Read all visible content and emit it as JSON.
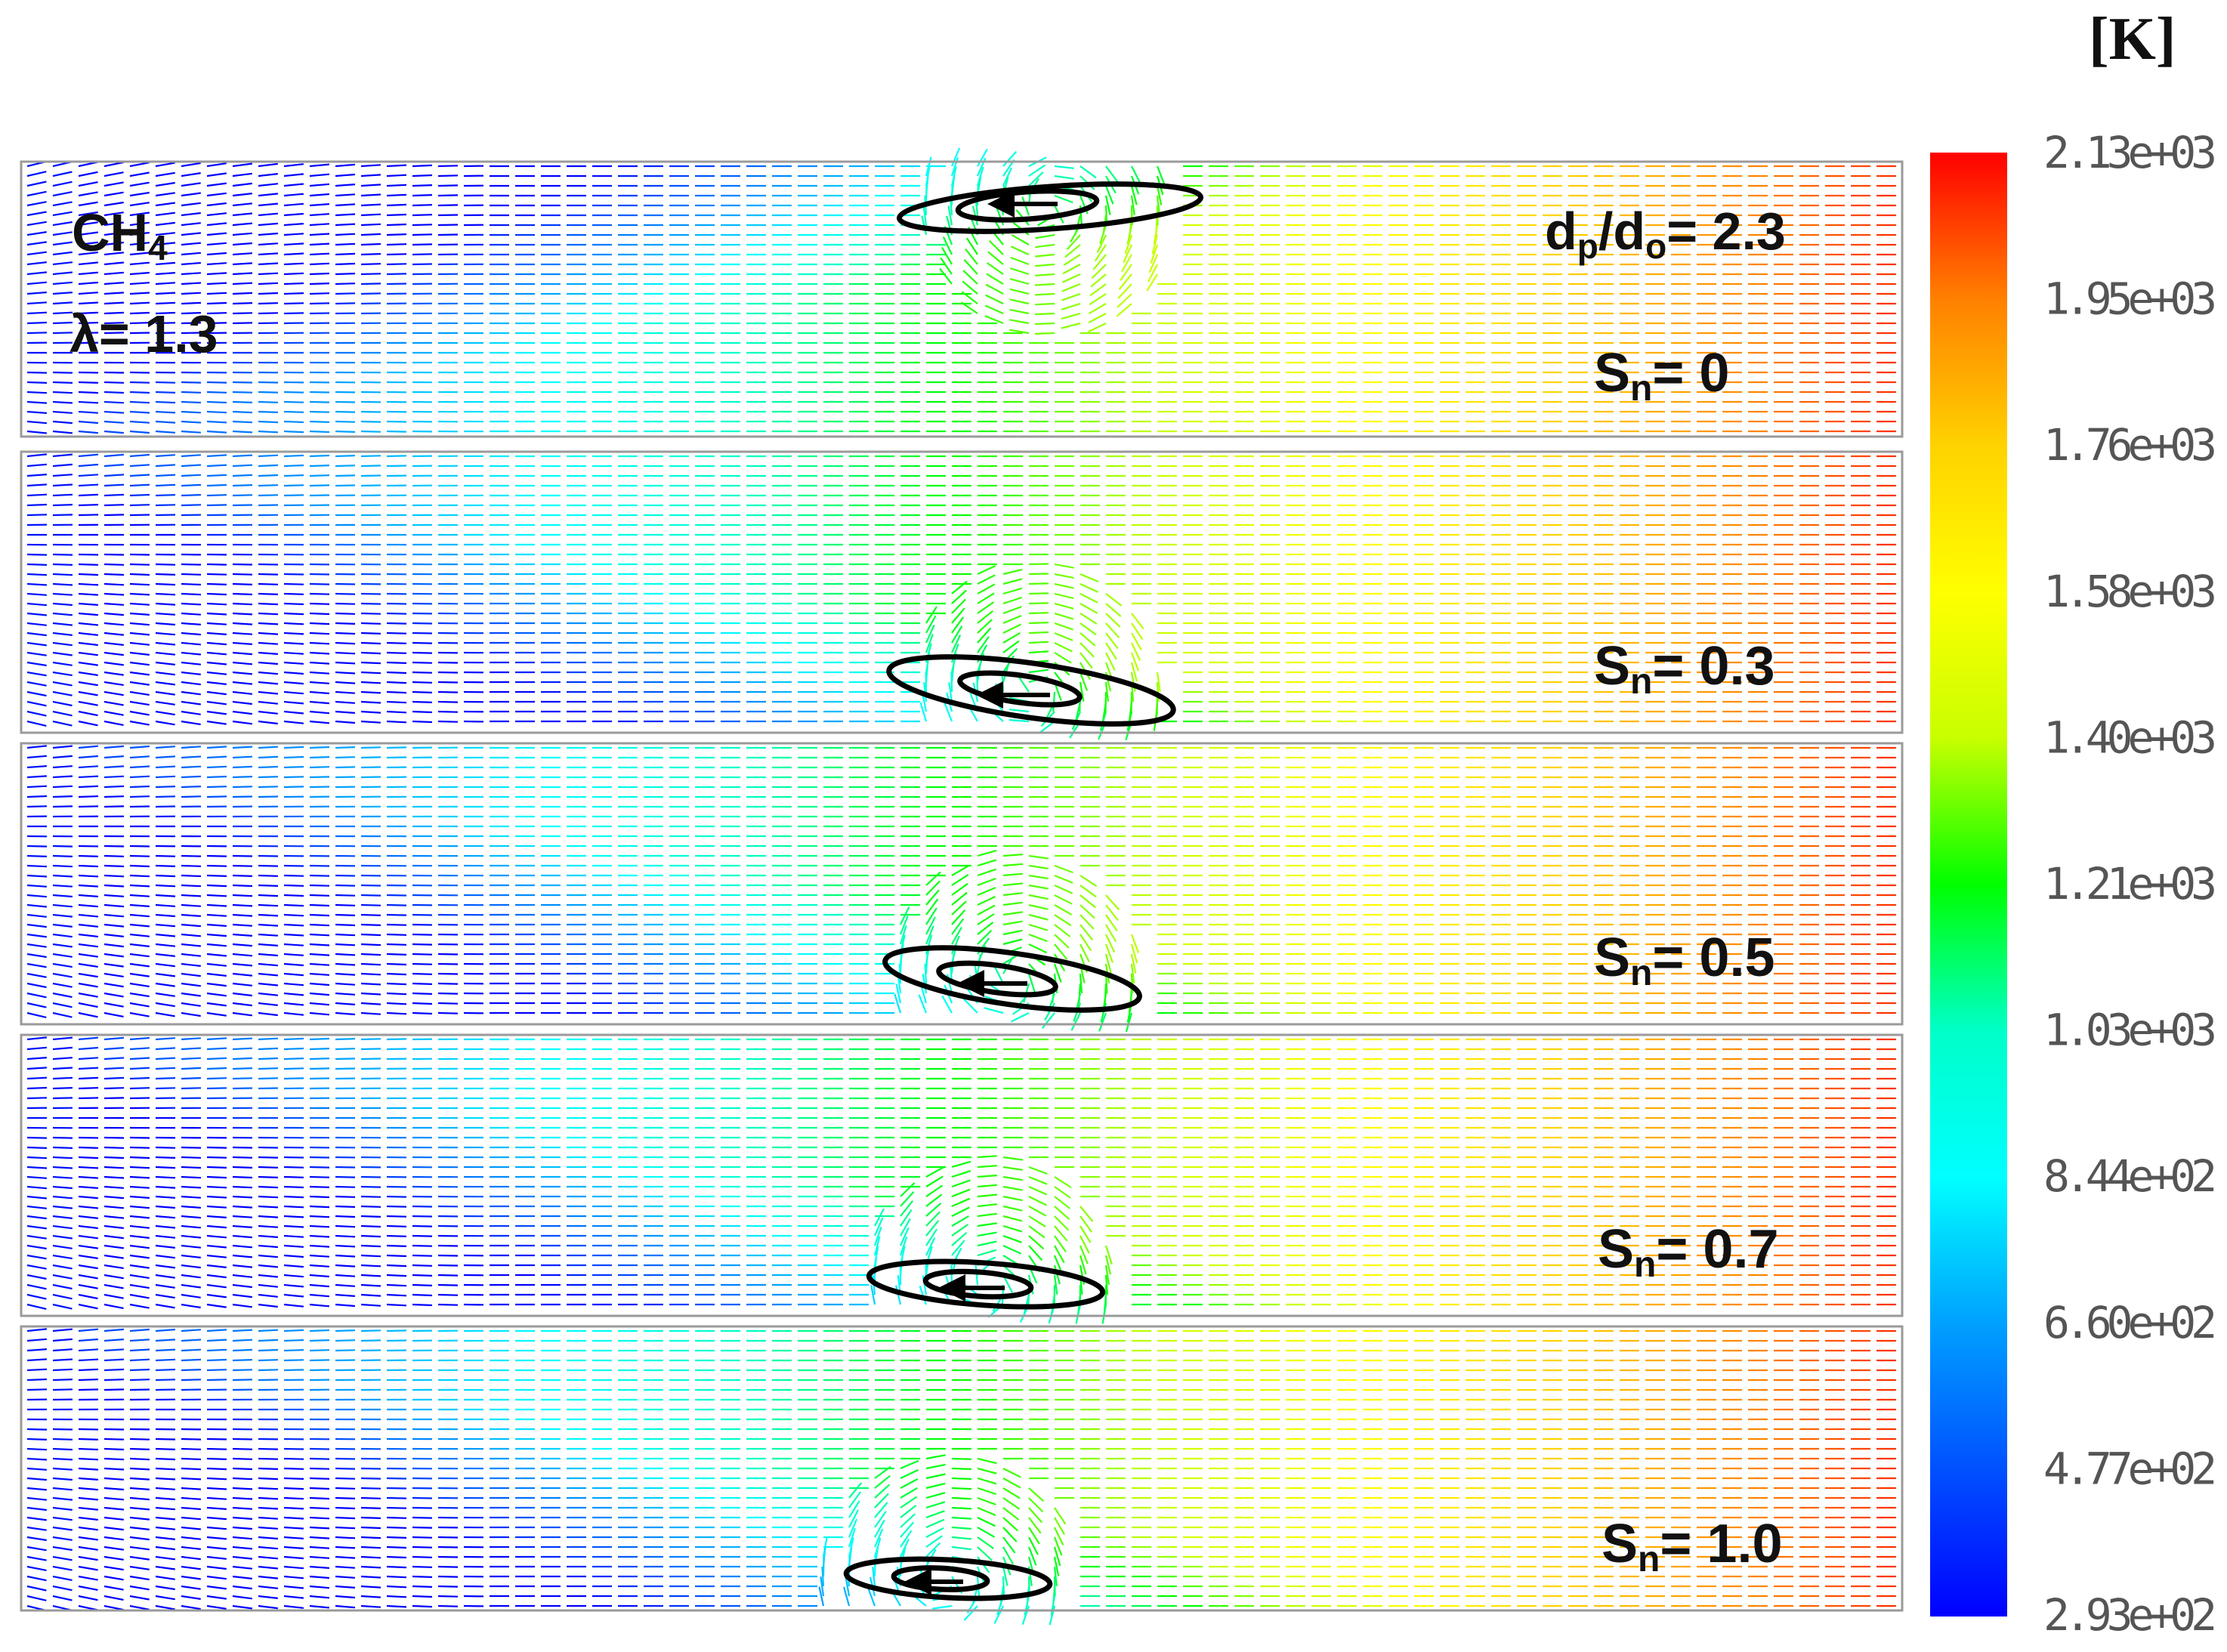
{
  "figure": {
    "fuel_label": "CH",
    "fuel_subscript": "4",
    "lambda_label": "λ= 1.3",
    "ratio_label": {
      "d1": "d",
      "sub1": "p",
      "slash": "/d",
      "sub2": "o",
      "value": "= 2.3"
    },
    "panels": [
      {
        "sn_prefix": "S",
        "sn_sub": "n",
        "sn_value": "= 0"
      },
      {
        "sn_prefix": "S",
        "sn_sub": "n",
        "sn_value": "= 0.3"
      },
      {
        "sn_prefix": "S",
        "sn_sub": "n",
        "sn_value": "= 0.5"
      },
      {
        "sn_prefix": "S",
        "sn_sub": "n",
        "sn_value": "= 0.7"
      },
      {
        "sn_prefix": "S",
        "sn_sub": "n",
        "sn_value": "= 1.0"
      }
    ]
  },
  "colorbar": {
    "unit": "[K]",
    "ticks": [
      "2.13e+03",
      "1.95e+03",
      "1.76e+03",
      "1.58e+03",
      "1.40e+03",
      "1.21e+03",
      "1.03e+03",
      "8.44e+02",
      "6.60e+02",
      "4.77e+02",
      "2.93e+02"
    ],
    "colors": [
      "#ff0000",
      "#ff8000",
      "#ffd200",
      "#ffff00",
      "#c8ff00",
      "#00ff00",
      "#00ffc8",
      "#00ffff",
      "#00a0ff",
      "#0050ff",
      "#0000ff"
    ]
  }
}
